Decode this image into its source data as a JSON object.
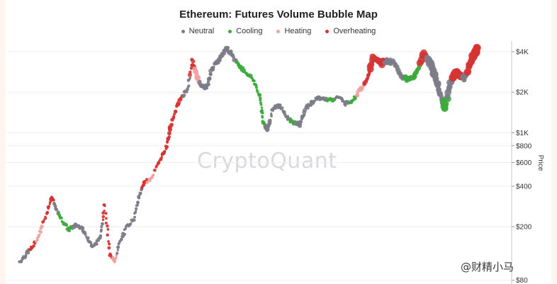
{
  "chart_data": {
    "type": "scatter",
    "title": "Ethereum: Futures Volume Bubble Map",
    "ylabel": "Price",
    "yscale": "log",
    "ylim": [
      75,
      4800
    ],
    "x_range": [
      0,
      100
    ],
    "y_ticks": [
      {
        "value": 4000,
        "label": "$4K"
      },
      {
        "value": 2000,
        "label": "$2K"
      },
      {
        "value": 1000,
        "label": "$1K"
      },
      {
        "value": 800,
        "label": "$800"
      },
      {
        "value": 600,
        "label": "$600"
      },
      {
        "value": 400,
        "label": "$400"
      },
      {
        "value": 200,
        "label": "$200"
      },
      {
        "value": 80,
        "label": "$80"
      }
    ],
    "legend": [
      {
        "key": "neutral",
        "name": "Neutral",
        "color": "#7c7c88"
      },
      {
        "key": "cooling",
        "name": "Cooling",
        "color": "#3aab3a"
      },
      {
        "key": "heating",
        "name": "Heating",
        "color": "#f0a0a0"
      },
      {
        "key": "overheating",
        "name": "Overheating",
        "color": "#d63434"
      }
    ],
    "legend_position": "top-center",
    "grid": true,
    "anchors": [
      [
        0,
        110,
        "neutral",
        2
      ],
      [
        1.5,
        128,
        "neutral",
        2
      ],
      [
        2.5,
        140,
        "overheating",
        2
      ],
      [
        4,
        175,
        "heating",
        2
      ],
      [
        5.5,
        250,
        "overheating",
        2
      ],
      [
        6.5,
        330,
        "overheating",
        2
      ],
      [
        7.5,
        270,
        "neutral",
        2
      ],
      [
        8.5,
        230,
        "cooling",
        2
      ],
      [
        10,
        190,
        "cooling",
        2
      ],
      [
        11.5,
        205,
        "neutral",
        2
      ],
      [
        12.5,
        200,
        "neutral",
        2
      ],
      [
        14,
        165,
        "neutral",
        2
      ],
      [
        15,
        140,
        "neutral",
        2
      ],
      [
        16.5,
        165,
        "neutral",
        2
      ],
      [
        17.5,
        300,
        "overheating",
        2
      ],
      [
        18.5,
        125,
        "overheating",
        2
      ],
      [
        19.5,
        110,
        "heating",
        2
      ],
      [
        20.5,
        150,
        "neutral",
        2
      ],
      [
        22,
        200,
        "neutral",
        2
      ],
      [
        23.5,
        230,
        "neutral",
        2
      ],
      [
        24.5,
        330,
        "neutral",
        2
      ],
      [
        25.5,
        430,
        "overheating",
        2
      ],
      [
        27,
        450,
        "heating",
        2
      ],
      [
        28.5,
        600,
        "overheating",
        2
      ],
      [
        30,
        750,
        "overheating",
        2
      ],
      [
        31,
        1100,
        "overheating",
        2.5
      ],
      [
        32.5,
        1650,
        "overheating",
        2.5
      ],
      [
        34.5,
        2100,
        "neutral",
        2
      ],
      [
        35.5,
        3400,
        "overheating",
        2.5
      ],
      [
        36.5,
        2600,
        "heating",
        3
      ],
      [
        37.5,
        2200,
        "neutral",
        2.5
      ],
      [
        38.5,
        2200,
        "neutral",
        2.5
      ],
      [
        39.5,
        3000,
        "neutral",
        2.5
      ],
      [
        41,
        3500,
        "neutral",
        2.5
      ],
      [
        42.5,
        4300,
        "neutral",
        3
      ],
      [
        44,
        3600,
        "neutral",
        2.5
      ],
      [
        45,
        3200,
        "cooling",
        2
      ],
      [
        46.5,
        2800,
        "cooling",
        2
      ],
      [
        48,
        2500,
        "cooling",
        2
      ],
      [
        49.5,
        1800,
        "cooling",
        2
      ],
      [
        50,
        1200,
        "cooling",
        2
      ],
      [
        51,
        1050,
        "neutral",
        3
      ],
      [
        52,
        1500,
        "neutral",
        2
      ],
      [
        53.5,
        1600,
        "neutral",
        2
      ],
      [
        55,
        1300,
        "neutral",
        2
      ],
      [
        56,
        1200,
        "cooling",
        2
      ],
      [
        57.5,
        1150,
        "neutral",
        2.5
      ],
      [
        59,
        1550,
        "neutral",
        2.5
      ],
      [
        61,
        1800,
        "neutral",
        2.5
      ],
      [
        62.5,
        1800,
        "neutral",
        2
      ],
      [
        64,
        1750,
        "cooling",
        2
      ],
      [
        65.5,
        1850,
        "neutral",
        2
      ],
      [
        67,
        1650,
        "neutral",
        2
      ],
      [
        68.5,
        1750,
        "cooling",
        2
      ],
      [
        70,
        2100,
        "heating",
        2.5
      ],
      [
        71.5,
        2450,
        "overheating",
        2.5
      ],
      [
        72.5,
        3600,
        "overheating",
        4
      ],
      [
        74.5,
        3300,
        "overheating",
        4
      ],
      [
        75.5,
        3450,
        "neutral",
        3
      ],
      [
        77,
        3300,
        "neutral",
        3
      ],
      [
        78.5,
        2600,
        "neutral",
        3
      ],
      [
        80,
        2500,
        "cooling",
        3
      ],
      [
        81.5,
        2700,
        "cooling",
        3
      ],
      [
        83,
        3900,
        "overheating",
        4.5
      ],
      [
        84.5,
        3300,
        "neutral",
        4.5
      ],
      [
        85.5,
        2600,
        "neutral",
        4.5
      ],
      [
        86.5,
        1900,
        "neutral",
        3.5
      ],
      [
        87.5,
        1500,
        "cooling",
        4
      ],
      [
        88.5,
        2300,
        "neutral",
        4
      ],
      [
        89.5,
        2800,
        "overheating",
        5
      ],
      [
        90.5,
        2700,
        "overheating",
        4
      ],
      [
        91.5,
        2500,
        "neutral",
        3.5
      ],
      [
        92.5,
        3200,
        "overheating",
        4.5
      ],
      [
        93.5,
        3900,
        "overheating",
        5
      ],
      [
        94,
        4250,
        "overheating",
        5
      ]
    ]
  },
  "watermark": "CryptoQuant",
  "credit": "@财精小马"
}
